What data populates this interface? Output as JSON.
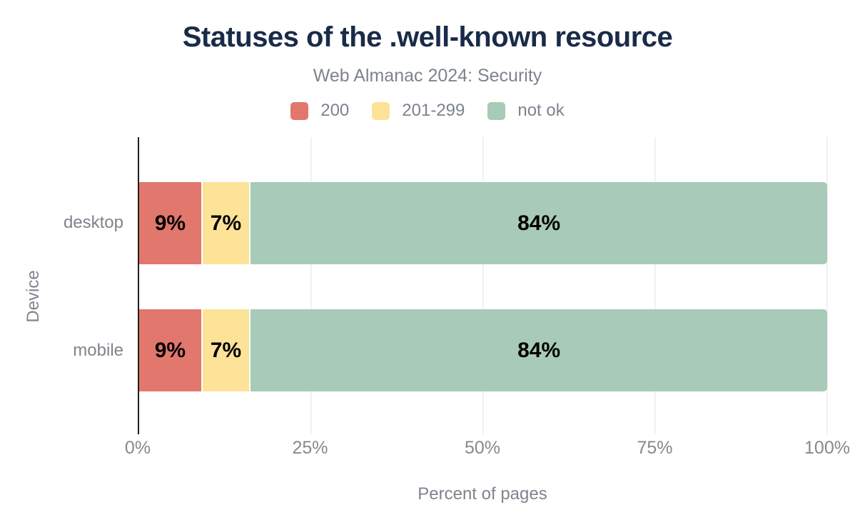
{
  "chart_data": {
    "type": "bar",
    "orientation": "horizontal",
    "stacked": true,
    "title": "Statuses of the .well-known resource",
    "subtitle": "Web Almanac 2024: Security",
    "xlabel": "Percent of pages",
    "ylabel": "Device",
    "categories": [
      "desktop",
      "mobile"
    ],
    "series": [
      {
        "name": "200",
        "color": "#e2776e",
        "values": [
          9,
          9
        ]
      },
      {
        "name": "201-299",
        "color": "#fce398",
        "values": [
          7,
          7
        ]
      },
      {
        "name": "not ok",
        "color": "#a8cab8",
        "values": [
          84,
          84
        ]
      }
    ],
    "value_label_suffix": "%",
    "xlim": [
      0,
      100
    ],
    "x_ticks": [
      "0%",
      "25%",
      "50%",
      "75%",
      "100%"
    ],
    "x_tick_values": [
      0,
      25,
      50,
      75,
      100
    ],
    "grid": true,
    "legend_position": "top",
    "colors": {
      "title": "#1a2b49",
      "muted_text": "#7d838d",
      "axis_line": "#1f1f1f",
      "gridline": "#f1f1f3",
      "bar_label": "#000000",
      "background": "#ffffff"
    }
  }
}
